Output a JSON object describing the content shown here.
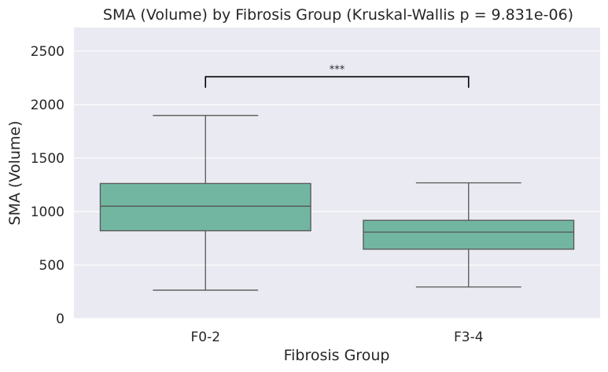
{
  "chart_data": {
    "type": "box",
    "title": "SMA (Volume) by Fibrosis Group (Kruskal-Wallis p = 9.831e-06)",
    "xlabel": "Fibrosis Group",
    "ylabel": "SMA (Volume)",
    "categories": [
      "F0-2",
      "F3-4"
    ],
    "ylim": [
      0,
      2720
    ],
    "yticks": [
      0,
      500,
      1000,
      1500,
      2000,
      2500
    ],
    "grid": true,
    "background_color": "#eaeaf2",
    "box_color": "#72b6a1",
    "line_color": "#555555",
    "boxes": [
      {
        "category": "F0-2",
        "whisker_low": 265,
        "q1": 820,
        "median": 1050,
        "q3": 1262,
        "whisker_high": 1898
      },
      {
        "category": "F3-4",
        "whisker_low": 295,
        "q1": 648,
        "median": 808,
        "q3": 918,
        "whisker_high": 1268
      }
    ],
    "annotation": {
      "text": "***",
      "from": "F0-2",
      "to": "F3-4",
      "y": 2260
    }
  }
}
